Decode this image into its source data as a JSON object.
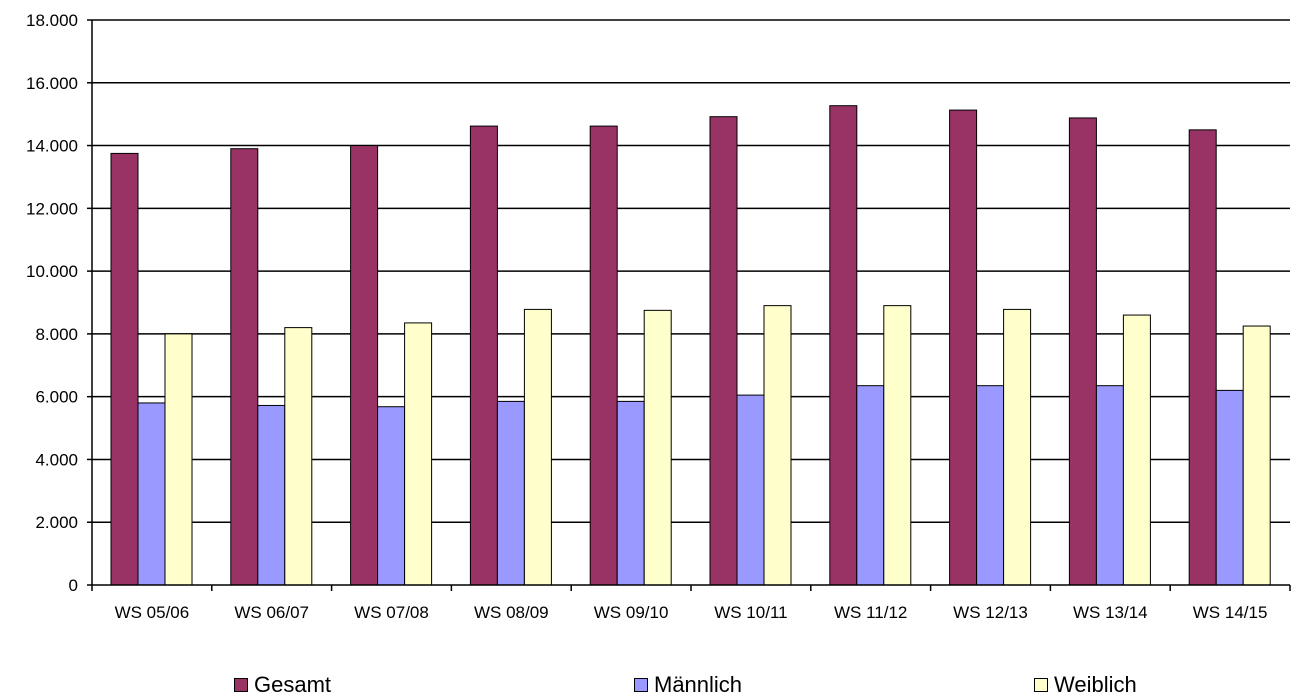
{
  "chart_data": {
    "type": "bar",
    "title": "",
    "xlabel": "",
    "ylabel": "",
    "categories": [
      "WS 05/06",
      "WS 06/07",
      "WS 07/08",
      "WS 08/09",
      "WS 09/10",
      "WS 10/11",
      "WS 11/12",
      "WS 12/13",
      "WS 13/14",
      "WS 14/15"
    ],
    "series": [
      {
        "name": "Gesamt",
        "color": "#993366",
        "values": [
          13750,
          13900,
          14000,
          14620,
          14620,
          14920,
          15270,
          15130,
          14880,
          14500
        ]
      },
      {
        "name": "Männlich",
        "color": "#9999FF",
        "values": [
          5800,
          5720,
          5680,
          5850,
          5850,
          6050,
          6350,
          6350,
          6350,
          6200
        ]
      },
      {
        "name": "Weiblich",
        "color": "#FFFFCC",
        "values": [
          8000,
          8200,
          8350,
          8780,
          8750,
          8900,
          8900,
          8780,
          8600,
          8250
        ]
      }
    ],
    "y_ticks": [
      "0",
      "2.000",
      "4.000",
      "6.000",
      "8.000",
      "10.000",
      "12.000",
      "14.000",
      "16.000",
      "18.000"
    ],
    "ylim": [
      0,
      18000
    ],
    "grid": true,
    "legend_position": "bottom"
  }
}
